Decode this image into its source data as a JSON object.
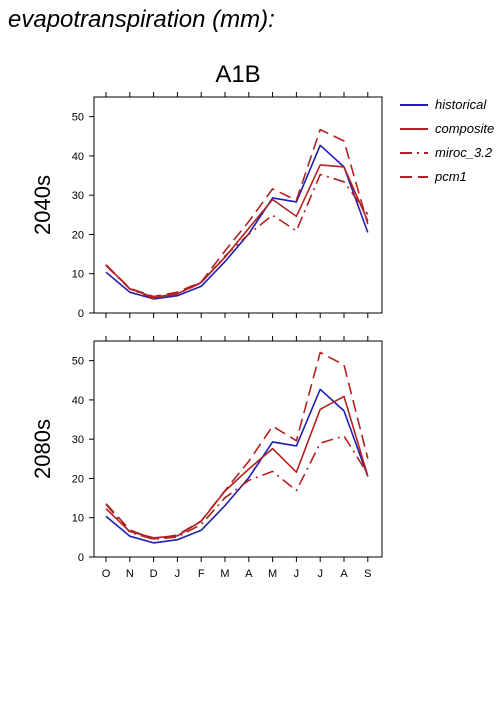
{
  "header": {
    "title": "evapotranspiration (mm):"
  },
  "chart_data": {
    "type": "line",
    "scenario_title": "A1B",
    "categories": [
      "O",
      "N",
      "D",
      "J",
      "F",
      "M",
      "A",
      "M",
      "J",
      "J",
      "A",
      "S"
    ],
    "ylim": [
      0,
      55
    ],
    "yticks": [
      0,
      10,
      20,
      30,
      40,
      50
    ],
    "legend": {
      "placement": "right",
      "entries": [
        "historical",
        "composite",
        "miroc_3.2",
        "pcm1"
      ]
    },
    "series_styles": {
      "historical": {
        "color": "#1f1fb4",
        "dash": ""
      },
      "composite": {
        "color": "#b22222",
        "dash": ""
      },
      "miroc_3.2": {
        "color": "#b22222",
        "dash": "12,5,2,5"
      },
      "pcm1": {
        "color": "#b22222",
        "dash": "12,6"
      }
    },
    "panels": [
      {
        "label": "2040s",
        "series": [
          {
            "name": "historical",
            "values": [
              10.4,
              5.3,
              3.6,
              4.4,
              6.8,
              13.1,
              20.2,
              29.3,
              28.3,
              42.7,
              37.2,
              20.5
            ]
          },
          {
            "name": "composite",
            "values": [
              12.2,
              6.2,
              4.0,
              4.9,
              7.8,
              14.2,
              21.6,
              28.9,
              24.6,
              37.7,
              37.2,
              23.4
            ]
          },
          {
            "name": "miroc_3.2",
            "values": [
              12.1,
              6.1,
              3.7,
              4.8,
              7.7,
              14.5,
              20.1,
              24.9,
              20.9,
              35.3,
              33.4,
              25.1
            ]
          },
          {
            "name": "pcm1",
            "values": [
              12.3,
              6.3,
              4.2,
              5.3,
              7.9,
              15.8,
              23.3,
              31.6,
              28.7,
              46.7,
              43.8,
              22.6
            ]
          }
        ]
      },
      {
        "label": "2080s",
        "series": [
          {
            "name": "historical",
            "values": [
              10.4,
              5.3,
              3.6,
              4.4,
              6.8,
              13.1,
              20.2,
              29.3,
              28.3,
              42.7,
              37.2,
              20.5
            ]
          },
          {
            "name": "composite",
            "values": [
              12.3,
              6.5,
              4.9,
              5.4,
              9.1,
              16.8,
              22.4,
              27.6,
              21.6,
              37.6,
              40.9,
              20.6
            ]
          },
          {
            "name": "miroc_3.2",
            "values": [
              13.4,
              6.3,
              4.5,
              5.1,
              8.3,
              15.1,
              19.5,
              21.8,
              16.9,
              29.0,
              30.8,
              21.1
            ]
          },
          {
            "name": "pcm1",
            "values": [
              13.6,
              6.9,
              4.6,
              5.6,
              9.2,
              16.9,
              24.4,
              33.3,
              29.6,
              52.1,
              48.9,
              25.1
            ]
          }
        ]
      }
    ]
  }
}
